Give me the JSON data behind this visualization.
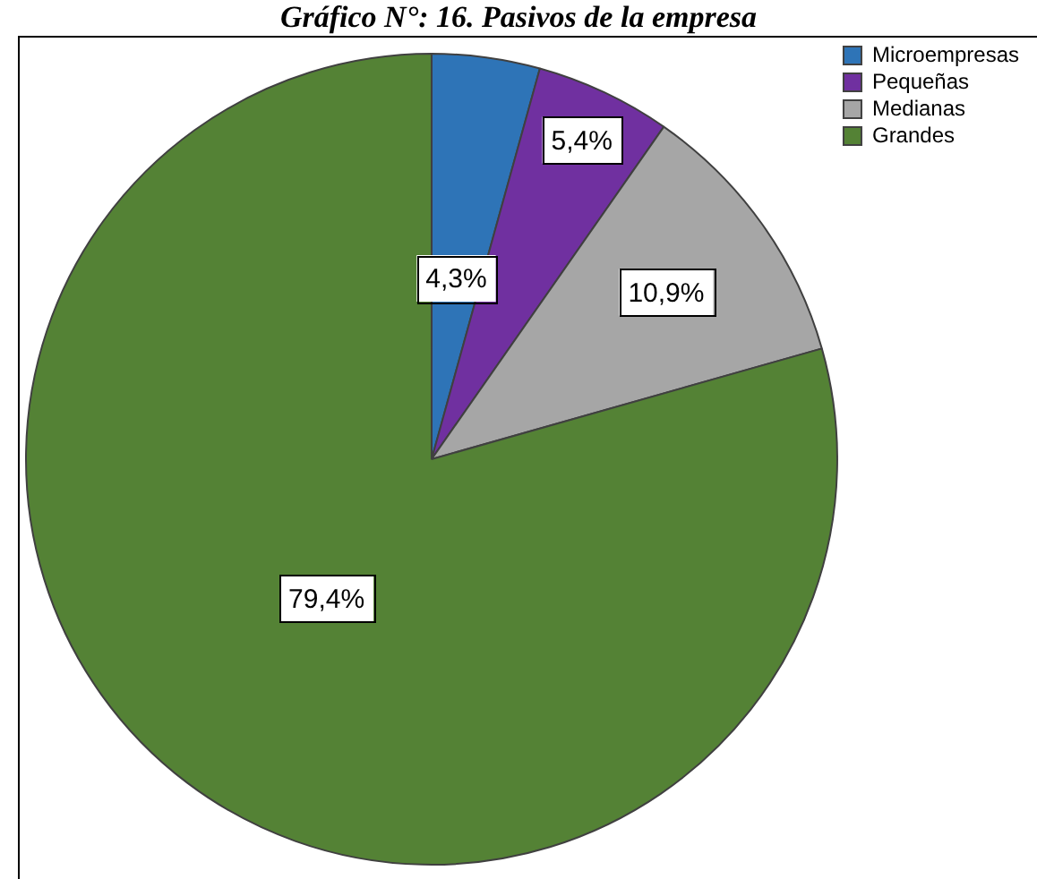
{
  "chart_data": {
    "type": "pie",
    "title": "Gráfico N°: 16. Pasivos de la empresa",
    "categories": [
      "Microempresas",
      "Pequeñas",
      "Medianas",
      "Grandes"
    ],
    "values": [
      4.3,
      5.4,
      10.9,
      79.4
    ],
    "colors": [
      "#2e74b7",
      "#7030a0",
      "#a6a6a6",
      "#548235"
    ],
    "value_labels": [
      "4,3%",
      "5,4%",
      "10,9%",
      "79,4%"
    ],
    "legend": "top right"
  }
}
